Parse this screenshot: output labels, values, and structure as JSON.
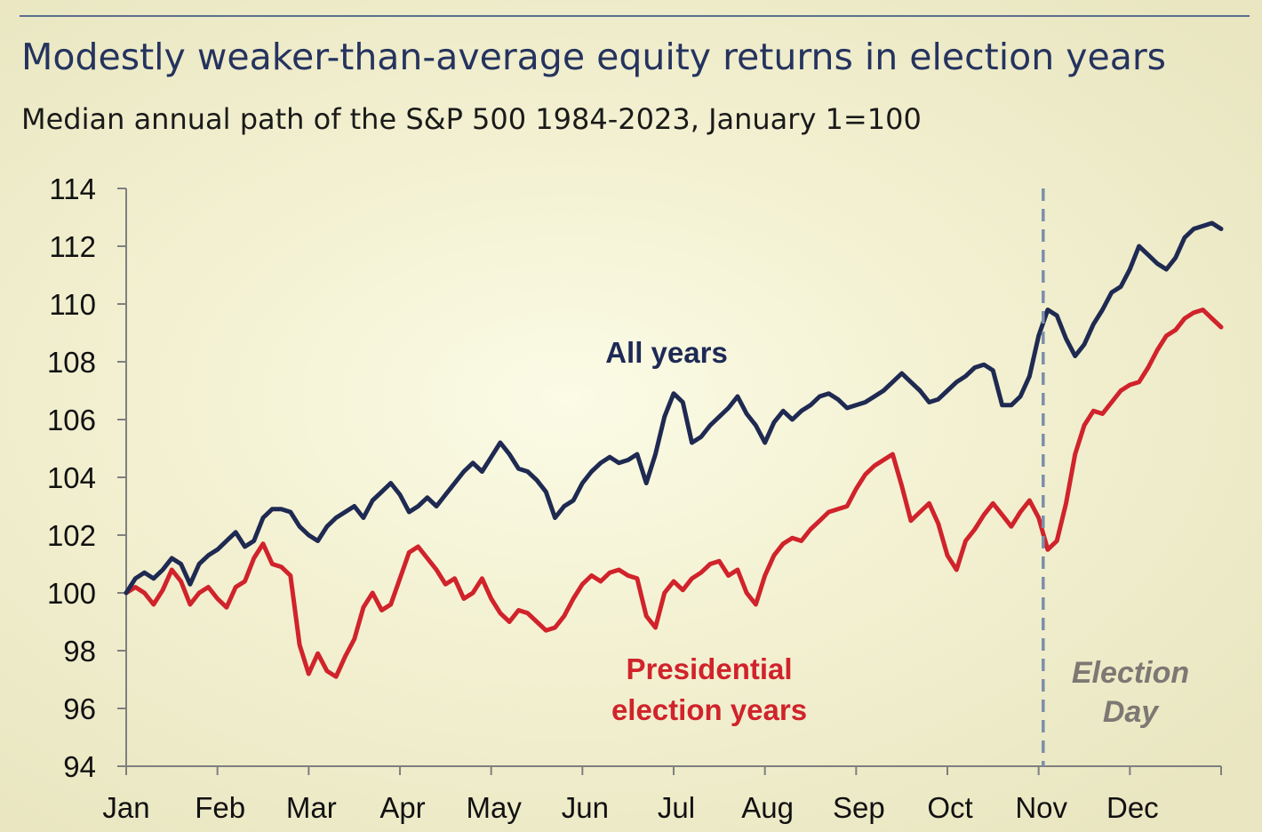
{
  "title": "Modestly weaker-than-average equity returns in election years",
  "subtitle": "Median annual path of the S&P 500 1984-2023, January 1=100",
  "chart_data": {
    "type": "line",
    "ylim": [
      94,
      114
    ],
    "yticks": [
      "94",
      "96",
      "98",
      "100",
      "102",
      "104",
      "106",
      "108",
      "110",
      "112",
      "114"
    ],
    "categories": [
      "Jan",
      "Feb",
      "Mar",
      "Apr",
      "May",
      "Jun",
      "Jul",
      "Aug",
      "Sep",
      "Oct",
      "Nov",
      "Dec"
    ],
    "xlim_months": [
      0,
      12
    ],
    "grid": false,
    "series": [
      {
        "name": "All years",
        "label_lines": [
          "All years"
        ],
        "color": "#1f2a52",
        "x": [
          0,
          0.1,
          0.2,
          0.3,
          0.4,
          0.5,
          0.6,
          0.7,
          0.8,
          0.9,
          1.0,
          1.1,
          1.2,
          1.3,
          1.4,
          1.5,
          1.6,
          1.7,
          1.8,
          1.9,
          2.0,
          2.1,
          2.2,
          2.3,
          2.4,
          2.5,
          2.6,
          2.7,
          2.8,
          2.9,
          3.0,
          3.1,
          3.2,
          3.3,
          3.4,
          3.5,
          3.6,
          3.7,
          3.8,
          3.9,
          4.0,
          4.1,
          4.2,
          4.3,
          4.4,
          4.5,
          4.6,
          4.7,
          4.8,
          4.9,
          5.0,
          5.1,
          5.2,
          5.3,
          5.4,
          5.5,
          5.6,
          5.7,
          5.8,
          5.9,
          6.0,
          6.1,
          6.2,
          6.3,
          6.4,
          6.5,
          6.6,
          6.7,
          6.8,
          6.9,
          7.0,
          7.1,
          7.2,
          7.3,
          7.4,
          7.5,
          7.6,
          7.7,
          7.8,
          7.9,
          8.0,
          8.1,
          8.2,
          8.3,
          8.4,
          8.5,
          8.6,
          8.7,
          8.8,
          8.9,
          9.0,
          9.1,
          9.2,
          9.3,
          9.4,
          9.5,
          9.6,
          9.7,
          9.8,
          9.9,
          10.0,
          10.1,
          10.2,
          10.3,
          10.4,
          10.5,
          10.6,
          10.7,
          10.8,
          10.9,
          11.0,
          11.1,
          11.2,
          11.3,
          11.4,
          11.5,
          11.6,
          11.7,
          11.8,
          11.9,
          12.0
        ],
        "values": [
          100.0,
          100.5,
          100.7,
          100.5,
          100.8,
          101.2,
          101.0,
          100.3,
          101.0,
          101.3,
          101.5,
          101.8,
          102.1,
          101.6,
          101.8,
          102.6,
          102.9,
          102.9,
          102.8,
          102.3,
          102.0,
          101.8,
          102.3,
          102.6,
          102.8,
          103.0,
          102.6,
          103.2,
          103.5,
          103.8,
          103.4,
          102.8,
          103.0,
          103.3,
          103.0,
          103.4,
          103.8,
          104.2,
          104.5,
          104.2,
          104.7,
          105.2,
          104.8,
          104.3,
          104.2,
          103.9,
          103.5,
          102.6,
          103.0,
          103.2,
          103.8,
          104.2,
          104.5,
          104.7,
          104.5,
          104.6,
          104.8,
          103.8,
          104.8,
          106.1,
          106.9,
          106.6,
          105.2,
          105.4,
          105.8,
          106.1,
          106.4,
          106.8,
          106.2,
          105.8,
          105.2,
          105.9,
          106.3,
          106.0,
          106.3,
          106.5,
          106.8,
          106.9,
          106.7,
          106.4,
          106.5,
          106.6,
          106.8,
          107.0,
          107.3,
          107.6,
          107.3,
          107.0,
          106.6,
          106.7,
          107.0,
          107.3,
          107.5,
          107.8,
          107.9,
          107.7,
          106.5,
          106.5,
          106.8,
          107.5,
          108.9,
          109.8,
          109.6,
          108.8,
          108.2,
          108.6,
          109.3,
          109.8,
          110.4,
          110.6,
          111.2,
          112.0,
          111.7,
          111.4,
          111.2,
          111.6,
          112.3,
          112.6,
          112.7,
          112.8,
          112.6
        ]
      },
      {
        "name": "Presidential election years",
        "label_lines": [
          "Presidential",
          "election years"
        ],
        "color": "#d0232b",
        "x": [
          0,
          0.1,
          0.2,
          0.3,
          0.4,
          0.5,
          0.6,
          0.7,
          0.8,
          0.9,
          1.0,
          1.1,
          1.2,
          1.3,
          1.4,
          1.5,
          1.6,
          1.7,
          1.8,
          1.9,
          2.0,
          2.1,
          2.2,
          2.3,
          2.4,
          2.5,
          2.6,
          2.7,
          2.8,
          2.9,
          3.0,
          3.1,
          3.2,
          3.3,
          3.4,
          3.5,
          3.6,
          3.7,
          3.8,
          3.9,
          4.0,
          4.1,
          4.2,
          4.3,
          4.4,
          4.5,
          4.6,
          4.7,
          4.8,
          4.9,
          5.0,
          5.1,
          5.2,
          5.3,
          5.4,
          5.5,
          5.6,
          5.7,
          5.8,
          5.9,
          6.0,
          6.1,
          6.2,
          6.3,
          6.4,
          6.5,
          6.6,
          6.7,
          6.8,
          6.9,
          7.0,
          7.1,
          7.2,
          7.3,
          7.4,
          7.5,
          7.6,
          7.7,
          7.8,
          7.9,
          8.0,
          8.1,
          8.2,
          8.3,
          8.4,
          8.5,
          8.6,
          8.7,
          8.8,
          8.9,
          9.0,
          9.1,
          9.2,
          9.3,
          9.4,
          9.5,
          9.6,
          9.7,
          9.8,
          9.9,
          10.0,
          10.1,
          10.2,
          10.3,
          10.4,
          10.5,
          10.6,
          10.7,
          10.8,
          10.9,
          11.0,
          11.1,
          11.2,
          11.3,
          11.4,
          11.5,
          11.6,
          11.7,
          11.8,
          11.9,
          12.0
        ],
        "values": [
          100.0,
          100.2,
          100.0,
          99.6,
          100.1,
          100.8,
          100.4,
          99.6,
          100.0,
          100.2,
          99.8,
          99.5,
          100.2,
          100.4,
          101.2,
          101.7,
          101.0,
          100.9,
          100.6,
          98.2,
          97.2,
          97.9,
          97.3,
          97.1,
          97.8,
          98.4,
          99.5,
          100.0,
          99.4,
          99.6,
          100.5,
          101.4,
          101.6,
          101.2,
          100.8,
          100.3,
          100.5,
          99.8,
          100.0,
          100.5,
          99.8,
          99.3,
          99.0,
          99.4,
          99.3,
          99.0,
          98.7,
          98.8,
          99.2,
          99.8,
          100.3,
          100.6,
          100.4,
          100.7,
          100.8,
          100.6,
          100.5,
          99.2,
          98.8,
          100.0,
          100.4,
          100.1,
          100.5,
          100.7,
          101.0,
          101.1,
          100.6,
          100.8,
          100.0,
          99.6,
          100.6,
          101.3,
          101.7,
          101.9,
          101.8,
          102.2,
          102.5,
          102.8,
          102.9,
          103.0,
          103.6,
          104.1,
          104.4,
          104.6,
          104.8,
          103.7,
          102.5,
          102.8,
          103.1,
          102.4,
          101.3,
          100.8,
          101.8,
          102.2,
          102.7,
          103.1,
          102.7,
          102.3,
          102.8,
          103.2,
          102.6,
          101.5,
          101.8,
          103.1,
          104.8,
          105.8,
          106.3,
          106.2,
          106.6,
          107.0,
          107.2,
          107.3,
          107.8,
          108.4,
          108.9,
          109.1,
          109.5,
          109.7,
          109.8,
          109.5,
          109.2
        ]
      }
    ],
    "annotations": [
      {
        "text_lines": [
          "Election",
          "Day"
        ],
        "x_month": 10.05,
        "style": "dashed-vertical-line",
        "color": "#7a8fab"
      }
    ]
  }
}
